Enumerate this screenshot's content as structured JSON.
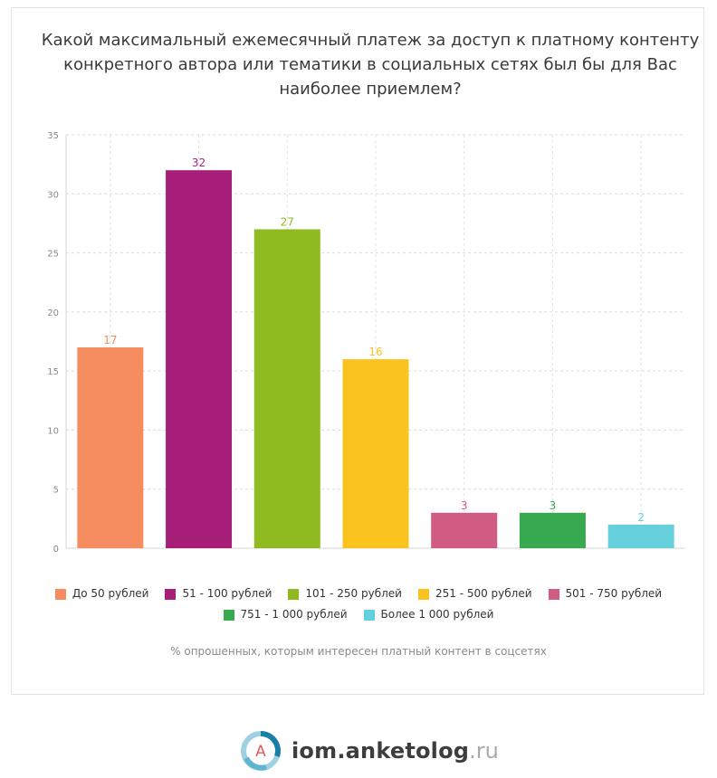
{
  "title": "Какой максимальный ежемесячный платеж за доступ к платному контенту конкретного автора или тематики в социальных сетях был бы для Вас наиболее приемлем?",
  "footnote": "% опрошенных, которым интересен платный контент в соцсетях",
  "brand": {
    "logo_letter": "A",
    "name": "iom.anketolog",
    "tld": ".ru"
  },
  "chart_data": {
    "type": "bar",
    "title": "Какой максимальный ежемесячный платеж за доступ к платному контенту конкретного автора или тематики в социальных сетях был бы для Вас наиболее приемлем?",
    "xlabel": "",
    "ylabel": "",
    "ylim": [
      0,
      35
    ],
    "yticks": [
      0,
      5,
      10,
      15,
      20,
      25,
      30,
      35
    ],
    "grid": true,
    "legend_position": "bottom",
    "categories": [
      "До 50 рублей",
      "51 - 100 рублей",
      "101 - 250 рублей",
      "251 - 500 рублей",
      "501 - 750 рублей",
      "751 - 1 000 рублей",
      "Более 1 000 рублей"
    ],
    "values": [
      17,
      32,
      27,
      16,
      3,
      3,
      2
    ],
    "colors": [
      "#f58d60",
      "#a61e77",
      "#8fbb21",
      "#fac31f",
      "#d05c83",
      "#37a94e",
      "#66cfdc"
    ]
  }
}
